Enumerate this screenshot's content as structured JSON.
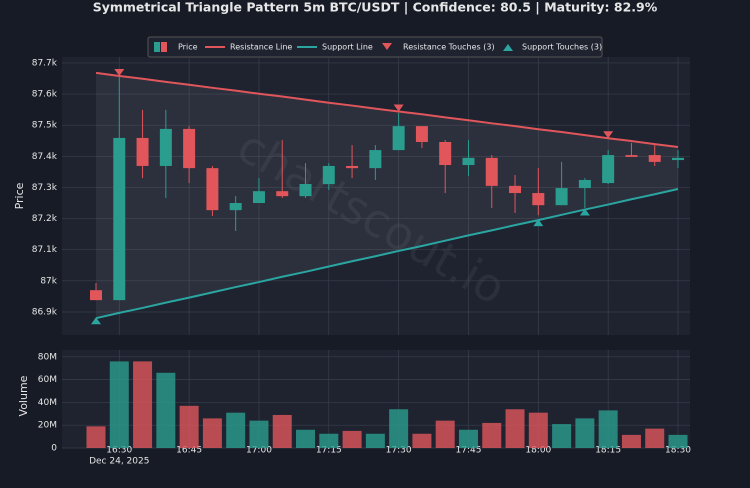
{
  "chart_data": {
    "type": "candlestick",
    "title": "Symmetrical Triangle Pattern 5m BTC/USDT | Confidence: 80.5 | Maturity: 82.9%",
    "categories": [
      null,
      "16:30",
      null,
      null,
      "16:45",
      null,
      null,
      "17:00",
      null,
      null,
      "17:15",
      null,
      null,
      "17:30",
      null,
      null,
      "17:45",
      null,
      null,
      "18:00",
      null,
      null,
      "18:15",
      null,
      null,
      "18:30"
    ],
    "date_label": "Dec 24, 2025",
    "ylabel": "Price",
    "ylim": [
      86826,
      87719
    ],
    "yticks": [
      {
        "value": 86900,
        "label": "86.9k"
      },
      {
        "value": 87000,
        "label": "87k"
      },
      {
        "value": 87100,
        "label": "87.1k"
      },
      {
        "value": 87200,
        "label": "87.2k"
      },
      {
        "value": 87300,
        "label": "87.3k"
      },
      {
        "value": 87400,
        "label": "87.4k"
      },
      {
        "value": 87500,
        "label": "87.5k"
      },
      {
        "value": 87600,
        "label": "87.6k"
      },
      {
        "value": 87700,
        "label": "87.7k"
      }
    ],
    "grid": true,
    "price_name": "Price",
    "up_color": "#2a9d8f",
    "down_color": "#e0565b",
    "open": [
      86970,
      86938,
      87459,
      87369,
      87488,
      87362,
      87227,
      87250,
      87288,
      87272,
      87311,
      87369,
      87362,
      87420,
      87497,
      87446,
      87372,
      87395,
      87305,
      87282,
      87243,
      87298,
      87314,
      87404,
      87404,
      87388
    ],
    "high": [
      86993,
      87661,
      87549,
      87549,
      87497,
      87369,
      87272,
      87330,
      87452,
      87378,
      87378,
      87436,
      87436,
      87539,
      87497,
      87452,
      87452,
      87404,
      87340,
      87362,
      87382,
      87330,
      87420,
      87443,
      87436,
      87420
    ],
    "low": [
      86938,
      86938,
      87330,
      87266,
      87314,
      87208,
      87160,
      87250,
      87266,
      87266,
      87292,
      87330,
      87324,
      87420,
      87427,
      87282,
      87337,
      87234,
      87218,
      87211,
      87243,
      87234,
      87311,
      87398,
      87369,
      87362
    ],
    "close": [
      86938,
      87459,
      87369,
      87488,
      87362,
      87227,
      87250,
      87288,
      87272,
      87311,
      87369,
      87362,
      87420,
      87497,
      87446,
      87372,
      87395,
      87305,
      87282,
      87243,
      87298,
      87324,
      87404,
      87398,
      87382,
      87395
    ],
    "resistance": {
      "name": "Resistance Line",
      "color": "#e0565b",
      "values": [
        87668,
        87658,
        87649,
        87639,
        87630,
        87620,
        87611,
        87601,
        87592,
        87582,
        87572,
        87563,
        87553,
        87544,
        87535,
        87525,
        87516,
        87506,
        87497,
        87487,
        87478,
        87468,
        87458,
        87449,
        87439,
        87430
      ]
    },
    "support": {
      "name": "Support Line",
      "color": "#2aa5a0",
      "values": [
        86880,
        86897,
        86913,
        86930,
        86946,
        86963,
        86980,
        86996,
        87013,
        87029,
        87046,
        87063,
        87079,
        87096,
        87112,
        87129,
        87146,
        87162,
        87179,
        87195,
        87212,
        87229,
        87245,
        87262,
        87278,
        87295
      ]
    },
    "resistance_touches": {
      "name": "Resistance Touches (3)",
      "color": "#e0565b",
      "values": [
        null,
        87658,
        null,
        null,
        null,
        null,
        null,
        null,
        null,
        null,
        null,
        null,
        null,
        87544,
        null,
        null,
        null,
        null,
        null,
        null,
        null,
        null,
        87458,
        null,
        null,
        null
      ]
    },
    "support_touches": {
      "name": "Support Touches (3)",
      "color": "#2aa5a0",
      "values": [
        86880,
        null,
        null,
        null,
        null,
        null,
        null,
        null,
        null,
        null,
        null,
        null,
        null,
        null,
        null,
        null,
        null,
        null,
        null,
        87195,
        null,
        87229,
        null,
        null,
        null,
        null
      ]
    },
    "watermark": "chartscout.io",
    "volume": {
      "ylabel": "Volume",
      "ylim": [
        0,
        86000000
      ],
      "yticks": [
        0,
        {
          "value": 20000000,
          "label": "20M"
        },
        {
          "value": 40000000,
          "label": "40M"
        },
        {
          "value": 60000000,
          "label": "60M"
        },
        {
          "value": 80000000,
          "label": "80M"
        }
      ],
      "values": [
        19000000,
        76000000,
        76000000,
        66000000,
        37000000,
        26000000,
        31000000,
        24000000,
        29000000,
        16000000,
        12500000,
        15000000,
        12500000,
        34000000,
        12500000,
        24000000,
        16000000,
        22000000,
        34000000,
        31000000,
        21000000,
        26000000,
        33000000,
        11500000,
        17000000,
        11500000
      ]
    }
  }
}
